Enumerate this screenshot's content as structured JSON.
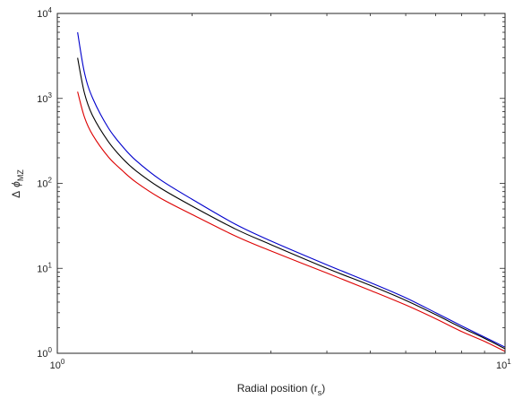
{
  "chart_data": {
    "type": "line",
    "title": "",
    "xlabel": {
      "main": "Radial position (r",
      "sub": "s",
      "close": ")"
    },
    "ylabel": {
      "delta": "Δ",
      "phi": "ϕ",
      "sub": "MZ"
    },
    "xscale": "log",
    "yscale": "log",
    "xlim": [
      1,
      10
    ],
    "ylim": [
      1,
      10000
    ],
    "grid": false,
    "legend": "none",
    "x_ticks": [
      {
        "base": "10",
        "exp": "0",
        "value": 1
      },
      {
        "base": "10",
        "exp": "1",
        "value": 10
      }
    ],
    "y_ticks": [
      {
        "base": "10",
        "exp": "0",
        "value": 1
      },
      {
        "base": "10",
        "exp": "1",
        "value": 10
      },
      {
        "base": "10",
        "exp": "2",
        "value": 100
      },
      {
        "base": "10",
        "exp": "3",
        "value": 1000
      },
      {
        "base": "10",
        "exp": "4",
        "value": 10000
      }
    ],
    "x": [
      1.11,
      1.15,
      1.2,
      1.3,
      1.4,
      1.5,
      1.7,
      2,
      2.5,
      3,
      4,
      5,
      6,
      7,
      8,
      9,
      10
    ],
    "series": [
      {
        "color": "#0000cc",
        "values": [
          6000,
          2000,
          1000,
          450,
          270,
          185,
          110,
          65,
          33,
          21,
          11,
          6.8,
          4.5,
          3.0,
          2.1,
          1.55,
          1.18
        ]
      },
      {
        "color": "#000000",
        "values": [
          3000,
          1150,
          620,
          310,
          195,
          140,
          88,
          54,
          29,
          19,
          10,
          6.3,
          4.2,
          2.85,
          2.0,
          1.5,
          1.13
        ]
      },
      {
        "color": "#dd0000",
        "values": [
          1200,
          600,
          370,
          205,
          140,
          103,
          67,
          43,
          24,
          16,
          8.8,
          5.5,
          3.7,
          2.55,
          1.8,
          1.38,
          1.05
        ]
      }
    ]
  }
}
